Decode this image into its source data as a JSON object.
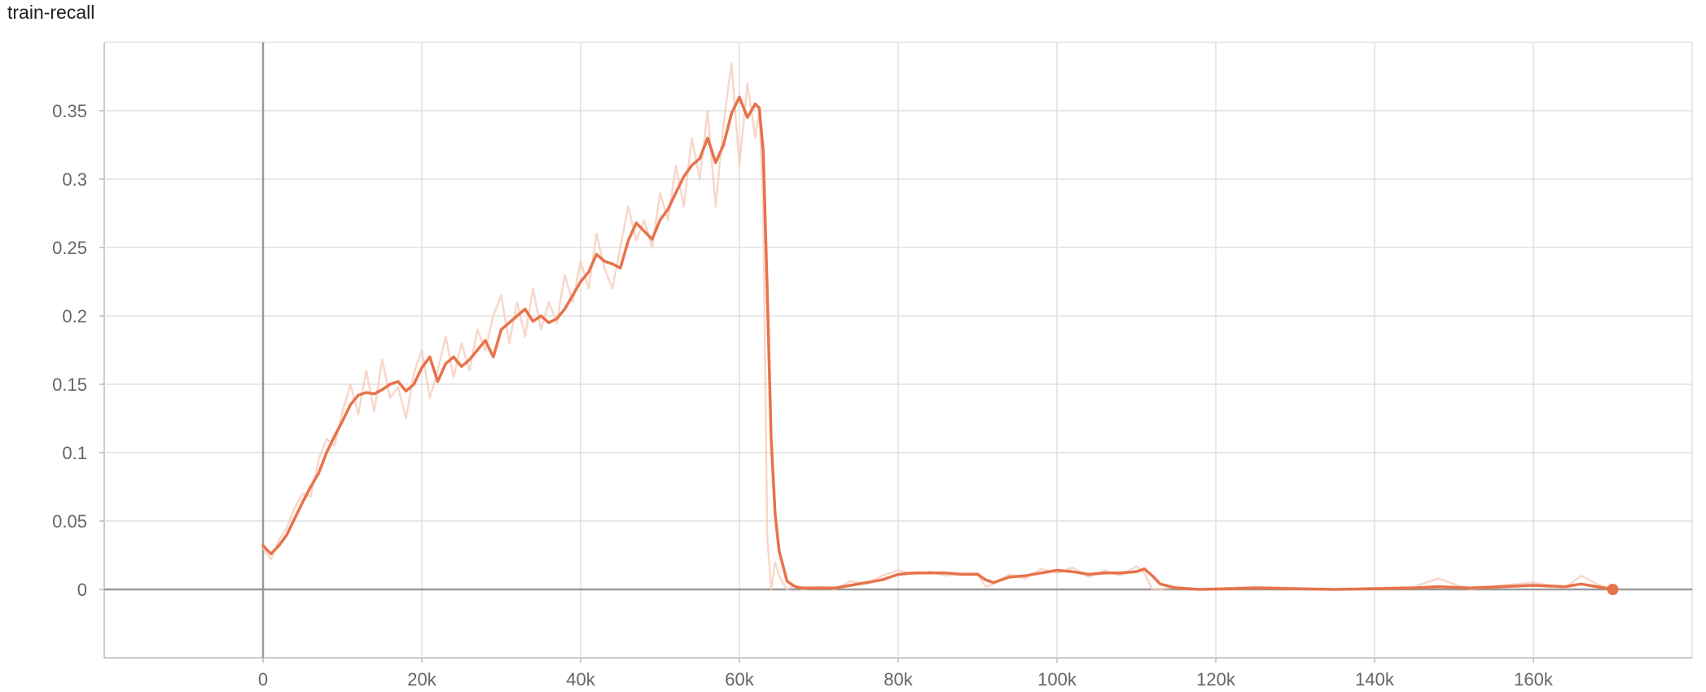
{
  "chart_data": {
    "type": "line",
    "title": "train-recall",
    "xlabel": "",
    "ylabel": "",
    "xlim": [
      -20000,
      180000
    ],
    "ylim": [
      -0.05,
      0.4
    ],
    "grid": true,
    "x_ticks": [
      0,
      20000,
      40000,
      60000,
      80000,
      100000,
      120000,
      140000,
      160000
    ],
    "x_tick_labels": [
      "0",
      "20k",
      "40k",
      "60k",
      "80k",
      "100k",
      "120k",
      "140k",
      "160k"
    ],
    "y_ticks": [
      0,
      0.05,
      0.1,
      0.15,
      0.2,
      0.25,
      0.3,
      0.35
    ],
    "y_tick_labels": [
      "0",
      "0.05",
      "0.1",
      "0.15",
      "0.2",
      "0.25",
      "0.3",
      "0.35"
    ],
    "colors": {
      "smoothed": "#E8724A",
      "raw": "#F6C9B9",
      "grid": "#E0E0E0",
      "axis": "#999999"
    },
    "series": [
      {
        "style": "smoothed",
        "x": [
          0,
          1000,
          2000,
          3000,
          4000,
          5000,
          6000,
          7000,
          8000,
          9000,
          10000,
          11000,
          12000,
          13000,
          14000,
          15000,
          16000,
          17000,
          18000,
          19000,
          20000,
          21000,
          22000,
          23000,
          24000,
          25000,
          26000,
          27000,
          28000,
          29000,
          30000,
          31000,
          32000,
          33000,
          34000,
          35000,
          36000,
          37000,
          38000,
          39000,
          40000,
          41000,
          42000,
          43000,
          44000,
          45000,
          46000,
          47000,
          48000,
          49000,
          50000,
          51000,
          52000,
          53000,
          54000,
          55000,
          56000,
          57000,
          58000,
          59000,
          60000,
          61000,
          62000,
          62500,
          63000,
          63500,
          64000,
          64500,
          65000,
          66000,
          67000,
          68000,
          70000,
          72000,
          74000,
          76000,
          78000,
          80000,
          82000,
          84000,
          86000,
          88000,
          90000,
          91000,
          92000,
          94000,
          96000,
          98000,
          100000,
          102000,
          104000,
          106000,
          108000,
          110000,
          111000,
          112000,
          113000,
          115000,
          118000,
          125000,
          135000,
          145000,
          148000,
          152000,
          156000,
          160000,
          164000,
          166000,
          168000,
          170000
        ],
        "y": [
          0.032,
          0.026,
          0.032,
          0.04,
          0.052,
          0.064,
          0.075,
          0.085,
          0.1,
          0.112,
          0.123,
          0.135,
          0.142,
          0.144,
          0.143,
          0.146,
          0.15,
          0.152,
          0.145,
          0.15,
          0.162,
          0.17,
          0.152,
          0.165,
          0.17,
          0.163,
          0.168,
          0.175,
          0.182,
          0.17,
          0.19,
          0.195,
          0.2,
          0.205,
          0.196,
          0.2,
          0.195,
          0.198,
          0.205,
          0.215,
          0.225,
          0.232,
          0.245,
          0.24,
          0.238,
          0.235,
          0.255,
          0.268,
          0.262,
          0.256,
          0.27,
          0.278,
          0.29,
          0.302,
          0.31,
          0.315,
          0.33,
          0.312,
          0.325,
          0.348,
          0.36,
          0.345,
          0.355,
          0.352,
          0.32,
          0.22,
          0.11,
          0.055,
          0.028,
          0.006,
          0.002,
          0.001,
          0.001,
          0.001,
          0.003,
          0.005,
          0.007,
          0.011,
          0.012,
          0.012,
          0.012,
          0.011,
          0.011,
          0.007,
          0.005,
          0.009,
          0.01,
          0.012,
          0.014,
          0.013,
          0.011,
          0.012,
          0.012,
          0.013,
          0.015,
          0.01,
          0.004,
          0.001,
          0.0,
          0.001,
          0.0,
          0.001,
          0.002,
          0.001,
          0.002,
          0.003,
          0.002,
          0.004,
          0.002,
          0.0
        ]
      },
      {
        "style": "raw",
        "x": [
          0,
          1000,
          2000,
          3000,
          4000,
          5000,
          6000,
          7000,
          8000,
          9000,
          10000,
          11000,
          12000,
          13000,
          14000,
          15000,
          16000,
          17000,
          18000,
          19000,
          20000,
          21000,
          22000,
          23000,
          24000,
          25000,
          26000,
          27000,
          28000,
          29000,
          30000,
          31000,
          32000,
          33000,
          34000,
          35000,
          36000,
          37000,
          38000,
          39000,
          40000,
          41000,
          42000,
          43000,
          44000,
          45000,
          46000,
          47000,
          48000,
          49000,
          50000,
          51000,
          52000,
          53000,
          54000,
          55000,
          56000,
          57000,
          58000,
          59000,
          60000,
          61000,
          62000,
          62500,
          63000,
          63500,
          64000,
          64500,
          65000,
          66000,
          67000,
          68000,
          70000,
          72000,
          74000,
          76000,
          78000,
          80000,
          82000,
          84000,
          86000,
          88000,
          90000,
          91000,
          92000,
          94000,
          96000,
          98000,
          100000,
          102000,
          104000,
          106000,
          108000,
          110000,
          111000,
          112000,
          113000,
          115000,
          118000,
          125000,
          135000,
          145000,
          148000,
          152000,
          156000,
          160000,
          164000,
          166000,
          168000,
          170000
        ],
        "y": [
          0.03,
          0.022,
          0.036,
          0.045,
          0.06,
          0.07,
          0.068,
          0.095,
          0.11,
          0.105,
          0.13,
          0.15,
          0.128,
          0.16,
          0.13,
          0.168,
          0.14,
          0.148,
          0.125,
          0.158,
          0.175,
          0.14,
          0.16,
          0.185,
          0.155,
          0.18,
          0.16,
          0.19,
          0.175,
          0.2,
          0.215,
          0.18,
          0.21,
          0.185,
          0.22,
          0.19,
          0.21,
          0.195,
          0.23,
          0.21,
          0.24,
          0.22,
          0.26,
          0.235,
          0.22,
          0.25,
          0.28,
          0.255,
          0.27,
          0.25,
          0.29,
          0.27,
          0.31,
          0.28,
          0.33,
          0.3,
          0.35,
          0.28,
          0.34,
          0.385,
          0.31,
          0.37,
          0.33,
          0.35,
          0.28,
          0.04,
          0.0,
          0.02,
          0.01,
          0.0,
          0.003,
          0.0,
          0.002,
          0.0,
          0.006,
          0.004,
          0.01,
          0.014,
          0.011,
          0.013,
          0.01,
          0.012,
          0.012,
          0.002,
          0.004,
          0.011,
          0.008,
          0.015,
          0.012,
          0.016,
          0.009,
          0.014,
          0.01,
          0.017,
          0.012,
          0.0,
          0.0,
          0.002,
          0.0,
          0.002,
          0.0,
          0.002,
          0.008,
          0.0,
          0.003,
          0.005,
          0.001,
          0.01,
          0.004,
          0.0
        ]
      }
    ]
  }
}
